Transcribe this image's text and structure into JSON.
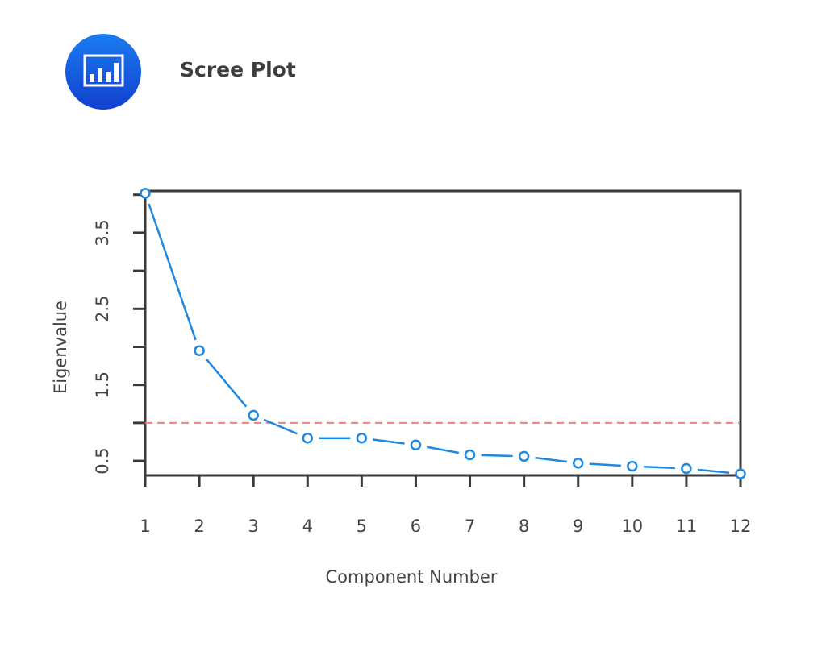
{
  "header": {
    "title": "Scree Plot",
    "icon": "bar-chart-icon",
    "icon_color": "#1a5fe6"
  },
  "chart_data": {
    "type": "line",
    "title": "",
    "xlabel": "Component Number",
    "ylabel": "Eigenvalue",
    "x": [
      1,
      2,
      3,
      4,
      5,
      6,
      7,
      8,
      9,
      10,
      11,
      12
    ],
    "series": [
      {
        "values": [
          4.02,
          1.95,
          1.1,
          0.8,
          0.8,
          0.71,
          0.58,
          0.56,
          0.47,
          0.43,
          0.4,
          0.33
        ],
        "color": "#1f88e0",
        "marker": "open-circle"
      }
    ],
    "reference_line": {
      "y": 1.0,
      "color": "#f08080",
      "style": "dashed"
    },
    "xticks": [
      "1",
      "2",
      "3",
      "4",
      "5",
      "6",
      "7",
      "8",
      "9",
      "10",
      "11",
      "12"
    ],
    "yticks": [
      0.5,
      1.0,
      1.5,
      2.0,
      2.5,
      3.0,
      3.5,
      4.0
    ],
    "ytick_labels": [
      "0.5",
      "1.5",
      "2.5",
      "3.5"
    ],
    "xlim": [
      1,
      12
    ],
    "ylim": [
      0.31,
      4.05
    ],
    "grid": false,
    "legend": "none"
  }
}
